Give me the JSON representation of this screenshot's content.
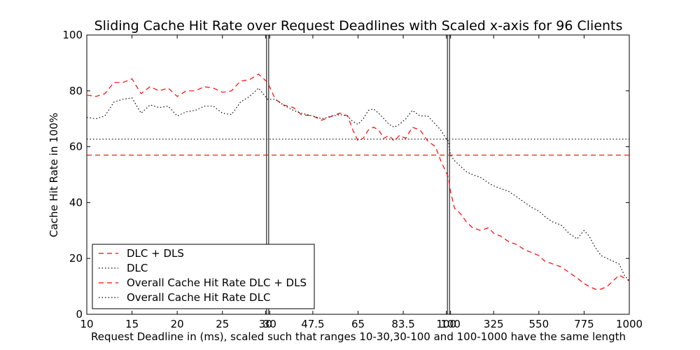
{
  "chart_data": {
    "type": "line",
    "title": "Sliding Cache Hit Rate over Request Deadlines with Scaled x-axis for 96 Clients",
    "xlabel": "Request Deadline in (ms), scaled such that ranges 10-30,30-100 and 100-1000 have the same length",
    "ylabel": "Cache Hit Rate in 100%",
    "ylim": [
      0,
      100
    ],
    "yticks": [
      "0",
      "20",
      "40",
      "60",
      "80",
      "100"
    ],
    "xtick_labels": [
      "10",
      "15",
      "20",
      "25",
      "30",
      "30",
      "47.5",
      "65",
      "83.5",
      "100",
      "100",
      "325",
      "550",
      "775",
      "1000"
    ],
    "segment_boundaries_ms": [
      30,
      100
    ],
    "grid": false,
    "legend_position": "lower-left",
    "series": [
      {
        "name": "DLC + DLS",
        "color": "#ff0000",
        "style": "dashed",
        "points": [
          [
            10,
            78.5
          ],
          [
            11,
            78
          ],
          [
            12,
            79
          ],
          [
            13,
            83
          ],
          [
            14,
            83
          ],
          [
            15,
            84.3
          ],
          [
            16,
            79
          ],
          [
            17,
            81.5
          ],
          [
            18,
            80
          ],
          [
            19,
            81
          ],
          [
            20,
            78
          ],
          [
            21,
            80
          ],
          [
            22,
            80
          ],
          [
            23,
            81.5
          ],
          [
            24,
            81
          ],
          [
            25,
            79.5
          ],
          [
            26,
            80
          ],
          [
            27,
            83.5
          ],
          [
            28,
            84
          ],
          [
            29,
            86
          ],
          [
            30,
            83
          ],
          [
            33,
            77
          ],
          [
            36,
            75
          ],
          [
            40,
            74
          ],
          [
            43,
            71.5
          ],
          [
            47.5,
            71
          ],
          [
            51,
            69.5
          ],
          [
            55,
            71
          ],
          [
            58,
            72
          ],
          [
            61,
            71
          ],
          [
            63,
            66
          ],
          [
            65,
            62
          ],
          [
            67,
            63
          ],
          [
            69,
            66
          ],
          [
            71,
            67
          ],
          [
            73,
            66
          ],
          [
            75,
            63
          ],
          [
            77,
            64
          ],
          [
            79,
            62
          ],
          [
            81,
            64
          ],
          [
            83.5,
            63
          ],
          [
            86,
            67
          ],
          [
            89,
            66
          ],
          [
            92,
            62
          ],
          [
            95,
            60
          ],
          [
            97,
            55
          ],
          [
            99,
            51
          ],
          [
            100,
            49
          ],
          [
            110,
            44
          ],
          [
            130,
            38
          ],
          [
            160,
            36
          ],
          [
            190,
            33
          ],
          [
            220,
            31
          ],
          [
            260,
            30
          ],
          [
            300,
            31
          ],
          [
            325,
            29
          ],
          [
            360,
            28
          ],
          [
            400,
            26
          ],
          [
            440,
            25
          ],
          [
            480,
            23
          ],
          [
            520,
            22
          ],
          [
            550,
            21
          ],
          [
            580,
            19
          ],
          [
            620,
            18
          ],
          [
            660,
            17
          ],
          [
            700,
            15
          ],
          [
            740,
            13
          ],
          [
            775,
            11
          ],
          [
            800,
            10
          ],
          [
            830,
            9
          ],
          [
            860,
            9
          ],
          [
            890,
            10
          ],
          [
            920,
            12
          ],
          [
            950,
            14
          ],
          [
            975,
            13
          ],
          [
            1000,
            12
          ]
        ]
      },
      {
        "name": "DLC",
        "color": "#000000",
        "style": "dotted",
        "points": [
          [
            10,
            70.5
          ],
          [
            11,
            70
          ],
          [
            12,
            71
          ],
          [
            13,
            76
          ],
          [
            14,
            77
          ],
          [
            15,
            77.5
          ],
          [
            16,
            72
          ],
          [
            17,
            75
          ],
          [
            18,
            74
          ],
          [
            19,
            74.5
          ],
          [
            20,
            71
          ],
          [
            21,
            72.5
          ],
          [
            22,
            73
          ],
          [
            23,
            74.5
          ],
          [
            24,
            74.5
          ],
          [
            25,
            72
          ],
          [
            26,
            71.5
          ],
          [
            27,
            76
          ],
          [
            28,
            78
          ],
          [
            29,
            81
          ],
          [
            30,
            77
          ],
          [
            33,
            77
          ],
          [
            36,
            75
          ],
          [
            40,
            73
          ],
          [
            43,
            72
          ],
          [
            47.5,
            71
          ],
          [
            51,
            70
          ],
          [
            55,
            71
          ],
          [
            58,
            71.5
          ],
          [
            61,
            71
          ],
          [
            63,
            69
          ],
          [
            65,
            68
          ],
          [
            67,
            70
          ],
          [
            69,
            73
          ],
          [
            71,
            73.5
          ],
          [
            73,
            72
          ],
          [
            75,
            70
          ],
          [
            77,
            68
          ],
          [
            79,
            67
          ],
          [
            81,
            68
          ],
          [
            83.5,
            70
          ],
          [
            86,
            73
          ],
          [
            89,
            71
          ],
          [
            92,
            71
          ],
          [
            95,
            68
          ],
          [
            97,
            66
          ],
          [
            99,
            63
          ],
          [
            100,
            62
          ],
          [
            110,
            57
          ],
          [
            130,
            55
          ],
          [
            160,
            53
          ],
          [
            190,
            51
          ],
          [
            220,
            50
          ],
          [
            260,
            49
          ],
          [
            300,
            47
          ],
          [
            325,
            46
          ],
          [
            360,
            45
          ],
          [
            400,
            44
          ],
          [
            440,
            42
          ],
          [
            480,
            40
          ],
          [
            520,
            38
          ],
          [
            550,
            37
          ],
          [
            580,
            35
          ],
          [
            620,
            33
          ],
          [
            660,
            32
          ],
          [
            700,
            29
          ],
          [
            740,
            27
          ],
          [
            775,
            30
          ],
          [
            800,
            28
          ],
          [
            830,
            24
          ],
          [
            860,
            21
          ],
          [
            890,
            20
          ],
          [
            920,
            19
          ],
          [
            950,
            18
          ],
          [
            975,
            14
          ],
          [
            1000,
            12
          ]
        ]
      },
      {
        "name": "Overall Cache Hit Rate DLC + DLS",
        "color": "#ff0000",
        "style": "dashed",
        "constant": 57
      },
      {
        "name": "Overall Cache Hit Rate DLC",
        "color": "#000000",
        "style": "dotted",
        "constant": 62.7
      }
    ]
  }
}
